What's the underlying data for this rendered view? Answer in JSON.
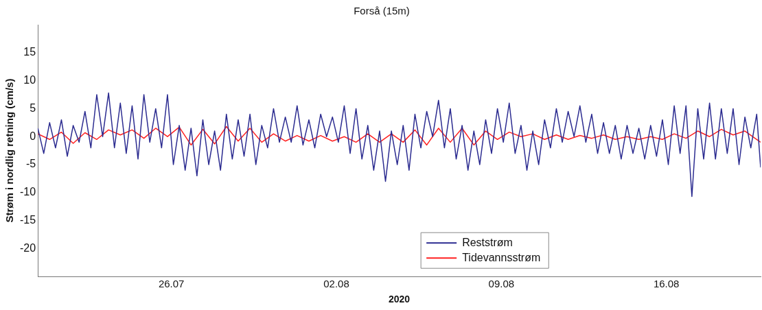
{
  "chart_data": {
    "type": "line",
    "title": "Forså (15m)",
    "xlabel": "2020",
    "ylabel": "Strøm i nordlig retning (cm/s)",
    "xlim": [
      "2020-07-20T08:00",
      "2020-08-20T00:00"
    ],
    "xticks": [
      {
        "value": "2020-07-26",
        "label": "26.07"
      },
      {
        "value": "2020-08-02",
        "label": "02.08"
      },
      {
        "value": "2020-08-09",
        "label": "09.08"
      },
      {
        "value": "2020-08-16",
        "label": "16.08"
      }
    ],
    "ylim": [
      -25,
      20
    ],
    "yticks": [
      -20,
      -15,
      -10,
      -5,
      0,
      5,
      10,
      15
    ],
    "grid": false,
    "legend": "bottom",
    "marker": "none",
    "line_style": "solid",
    "series": [
      {
        "name": "Reststrøm",
        "color": "#2b2b90",
        "x": [
          "2020-07-20T08:00",
          "2020-07-20T14:00",
          "2020-07-20T20:00",
          "2020-07-21T02:00",
          "2020-07-21T08:00",
          "2020-07-21T14:00",
          "2020-07-21T20:00",
          "2020-07-22T02:00",
          "2020-07-22T08:00",
          "2020-07-22T14:00",
          "2020-07-22T20:00",
          "2020-07-23T02:00",
          "2020-07-23T08:00",
          "2020-07-23T14:00",
          "2020-07-23T20:00",
          "2020-07-24T02:00",
          "2020-07-24T08:00",
          "2020-07-24T14:00",
          "2020-07-24T20:00",
          "2020-07-25T02:00",
          "2020-07-25T08:00",
          "2020-07-25T14:00",
          "2020-07-25T20:00",
          "2020-07-26T02:00",
          "2020-07-26T08:00",
          "2020-07-26T14:00",
          "2020-07-26T20:00",
          "2020-07-27T02:00",
          "2020-07-27T08:00",
          "2020-07-27T14:00",
          "2020-07-27T20:00",
          "2020-07-28T02:00",
          "2020-07-28T08:00",
          "2020-07-28T14:00",
          "2020-07-28T20:00",
          "2020-07-29T02:00",
          "2020-07-29T08:00",
          "2020-07-29T14:00",
          "2020-07-29T20:00",
          "2020-07-30T02:00",
          "2020-07-30T08:00",
          "2020-07-30T14:00",
          "2020-07-30T20:00",
          "2020-07-31T02:00",
          "2020-07-31T08:00",
          "2020-07-31T14:00",
          "2020-07-31T20:00",
          "2020-08-01T02:00",
          "2020-08-01T08:00",
          "2020-08-01T14:00",
          "2020-08-01T20:00",
          "2020-08-02T02:00",
          "2020-08-02T08:00",
          "2020-08-02T14:00",
          "2020-08-02T20:00",
          "2020-08-03T02:00",
          "2020-08-03T08:00",
          "2020-08-03T14:00",
          "2020-08-03T20:00",
          "2020-08-04T02:00",
          "2020-08-04T08:00",
          "2020-08-04T14:00",
          "2020-08-04T20:00",
          "2020-08-05T02:00",
          "2020-08-05T08:00",
          "2020-08-05T14:00",
          "2020-08-05T20:00",
          "2020-08-06T02:00",
          "2020-08-06T08:00",
          "2020-08-06T14:00",
          "2020-08-06T20:00",
          "2020-08-07T02:00",
          "2020-08-07T08:00",
          "2020-08-07T14:00",
          "2020-08-07T20:00",
          "2020-08-08T02:00",
          "2020-08-08T08:00",
          "2020-08-08T14:00",
          "2020-08-08T20:00",
          "2020-08-09T02:00",
          "2020-08-09T08:00",
          "2020-08-09T14:00",
          "2020-08-09T20:00",
          "2020-08-10T02:00",
          "2020-08-10T08:00",
          "2020-08-10T14:00",
          "2020-08-10T20:00",
          "2020-08-11T02:00",
          "2020-08-11T08:00",
          "2020-08-11T14:00",
          "2020-08-11T20:00",
          "2020-08-12T02:00",
          "2020-08-12T08:00",
          "2020-08-12T14:00",
          "2020-08-12T20:00",
          "2020-08-13T02:00",
          "2020-08-13T08:00",
          "2020-08-13T14:00",
          "2020-08-13T20:00",
          "2020-08-14T02:00",
          "2020-08-14T08:00",
          "2020-08-14T14:00",
          "2020-08-14T20:00",
          "2020-08-15T02:00",
          "2020-08-15T08:00",
          "2020-08-15T14:00",
          "2020-08-15T20:00",
          "2020-08-16T02:00",
          "2020-08-16T08:00",
          "2020-08-16T14:00",
          "2020-08-16T20:00",
          "2020-08-17T02:00",
          "2020-08-17T08:00",
          "2020-08-17T14:00",
          "2020-08-17T20:00",
          "2020-08-18T02:00",
          "2020-08-18T08:00",
          "2020-08-18T14:00",
          "2020-08-18T20:00",
          "2020-08-19T02:00",
          "2020-08-19T08:00",
          "2020-08-19T14:00",
          "2020-08-19T20:00",
          "2020-08-20T00:00"
        ],
        "values": [
          1.5,
          -3,
          2.5,
          -2,
          3,
          -3.5,
          2,
          -1,
          4.5,
          -2,
          7.5,
          0,
          7.8,
          -2,
          6,
          -3,
          5.5,
          -4,
          7.5,
          -1,
          5,
          -2,
          7.5,
          -5,
          2,
          -6,
          1.5,
          -7,
          3,
          -5,
          1,
          -6,
          4,
          -4,
          3,
          -3.5,
          4,
          -5,
          2,
          -2,
          5,
          -1,
          3.5,
          -1,
          5.5,
          -1.5,
          3,
          -2,
          4,
          0,
          3.5,
          -1,
          5.5,
          -3,
          5,
          -4,
          2,
          -6,
          1,
          -8,
          1,
          -5,
          2,
          -6,
          4,
          -2,
          4.5,
          0,
          6.5,
          -2,
          5,
          -4,
          2,
          -6,
          1,
          -5,
          3,
          -3,
          5,
          -1,
          6,
          -3,
          2,
          -6,
          1,
          -5,
          3,
          -2,
          5,
          -1,
          4.5,
          0,
          5.5,
          -1,
          4,
          -3,
          2.5,
          -3,
          2,
          -4,
          2,
          -3,
          1.5,
          -4,
          2,
          -3.5,
          3,
          -5,
          5.5,
          -3,
          5.5,
          -10.7,
          5,
          -4,
          6,
          -4,
          5,
          -3,
          5,
          -5,
          3.5,
          -2,
          4,
          -5.5
        ]
      },
      {
        "name": "Tidevannsstrøm",
        "color": "#ff2020",
        "x": [
          "2020-07-20T08:00",
          "2020-07-20T20:00",
          "2020-07-21T08:00",
          "2020-07-21T20:00",
          "2020-07-22T08:00",
          "2020-07-22T20:00",
          "2020-07-23T08:00",
          "2020-07-23T20:00",
          "2020-07-24T08:00",
          "2020-07-24T20:00",
          "2020-07-25T08:00",
          "2020-07-25T20:00",
          "2020-07-26T08:00",
          "2020-07-26T20:00",
          "2020-07-27T08:00",
          "2020-07-27T20:00",
          "2020-07-28T08:00",
          "2020-07-28T20:00",
          "2020-07-29T08:00",
          "2020-07-29T20:00",
          "2020-07-30T08:00",
          "2020-07-30T20:00",
          "2020-07-31T08:00",
          "2020-07-31T20:00",
          "2020-08-01T08:00",
          "2020-08-01T20:00",
          "2020-08-02T08:00",
          "2020-08-02T20:00",
          "2020-08-03T08:00",
          "2020-08-03T20:00",
          "2020-08-04T08:00",
          "2020-08-04T20:00",
          "2020-08-05T08:00",
          "2020-08-05T20:00",
          "2020-08-06T08:00",
          "2020-08-06T20:00",
          "2020-08-07T08:00",
          "2020-08-07T20:00",
          "2020-08-08T08:00",
          "2020-08-08T20:00",
          "2020-08-09T08:00",
          "2020-08-09T20:00",
          "2020-08-10T08:00",
          "2020-08-10T20:00",
          "2020-08-11T08:00",
          "2020-08-11T20:00",
          "2020-08-12T08:00",
          "2020-08-12T20:00",
          "2020-08-13T08:00",
          "2020-08-13T20:00",
          "2020-08-14T08:00",
          "2020-08-14T20:00",
          "2020-08-15T08:00",
          "2020-08-15T20:00",
          "2020-08-16T08:00",
          "2020-08-16T20:00",
          "2020-08-17T08:00",
          "2020-08-17T20:00",
          "2020-08-18T08:00",
          "2020-08-18T20:00",
          "2020-08-19T08:00",
          "2020-08-19T20:00",
          "2020-08-20T00:00"
        ],
        "values": [
          0.5,
          -0.5,
          0.8,
          -1.2,
          0.7,
          -0.5,
          1.2,
          0.3,
          1.2,
          -0.3,
          1.5,
          0,
          1.7,
          -1.5,
          1.3,
          -1.3,
          1.8,
          -0.8,
          1.5,
          -1,
          0.5,
          -0.8,
          0.2,
          -0.8,
          0.2,
          -0.8,
          0,
          -1,
          0.5,
          -1,
          0.5,
          -1,
          1.2,
          -1.5,
          1.5,
          -1,
          1.5,
          -1.5,
          1,
          -0.5,
          0.8,
          0,
          0.5,
          -0.5,
          0.3,
          -0.5,
          0.2,
          -0.3,
          0.3,
          -0.5,
          0,
          -0.5,
          0,
          -0.5,
          0.5,
          -0.3,
          1,
          0,
          1.3,
          0.3,
          1,
          -0.5,
          -1
        ]
      }
    ]
  }
}
